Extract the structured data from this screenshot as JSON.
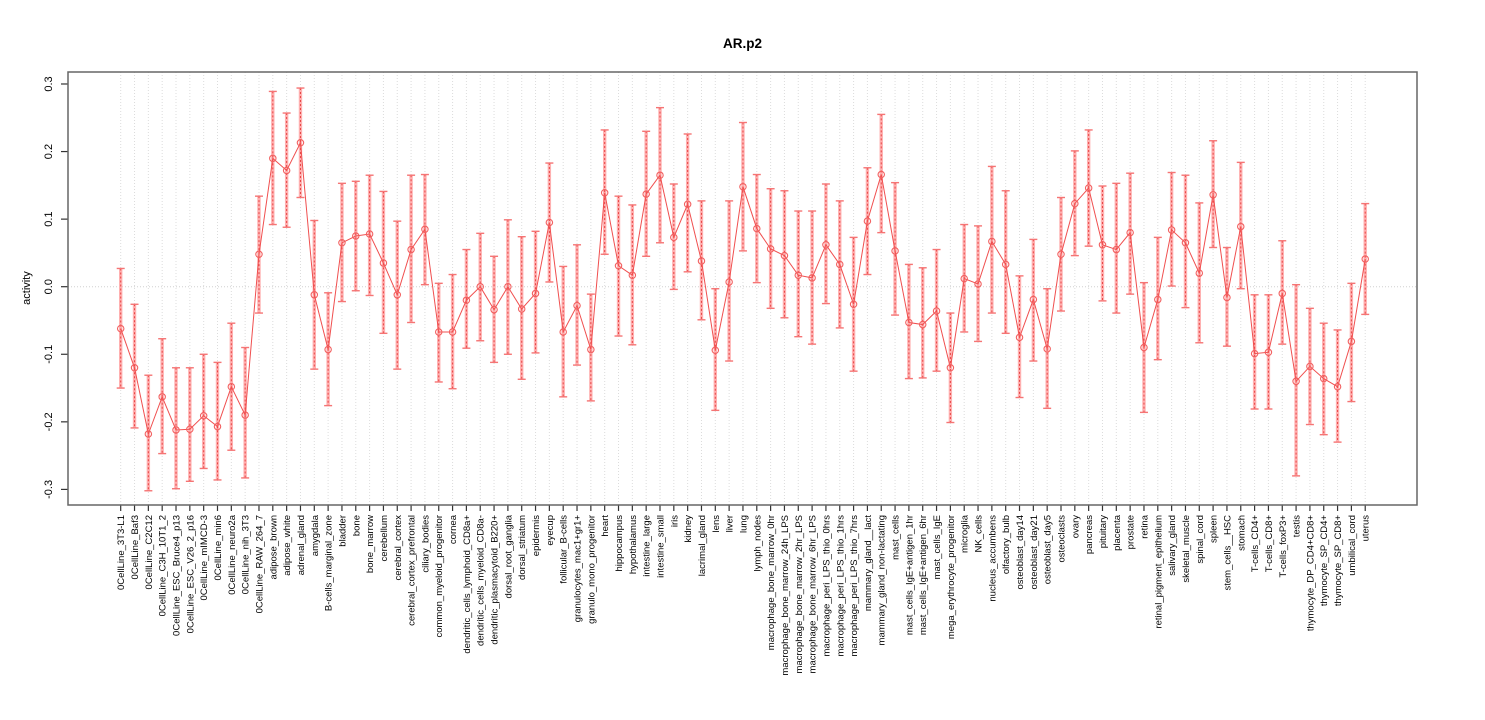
{
  "window": {
    "title": "AR.p2"
  },
  "chart_data": {
    "type": "line",
    "subtype": "points-with-error-bars",
    "title": "AR.p2",
    "xlabel": "",
    "ylabel": "activity",
    "ylim": [
      -0.3,
      0.3
    ],
    "yticks": [
      0.3,
      0.2,
      0.1,
      0.0,
      -0.1,
      -0.2,
      -0.3
    ],
    "ytick_labels": [
      "0.3",
      "0.2",
      "0.1",
      "0.0",
      "-0.1",
      "-0.2",
      "-0.3"
    ],
    "grid": "dotted vertical line at every category; dotted horizontal line at y=0",
    "legend": "none",
    "colors": {
      "point": "#f26060",
      "segment_line": "#f04f4f",
      "errorbar_thick": "#ffb0b0",
      "errorbar_cap": "#f57575",
      "errorbar_dash": "#e84545",
      "gridline": "#dcdcdc",
      "box": "#666666",
      "tick": "#333333",
      "text": "#000000"
    },
    "categories": [
      "0CellLine_3T3-L1",
      "0CellLine_Baf3",
      "0CellLine_C2C12",
      "0CellLine_C3H_10T1_2",
      "0CellLine_ESC_Bruce4_p13",
      "0CellLine_ESC_V26_2_p16",
      "0CellLine_mIMCD-3",
      "0CellLine_min6",
      "0CellLine_neuro2a",
      "0CellLine_nih_3T3",
      "0CellLine_RAW_264_7",
      "adipose_brown",
      "adipose_white",
      "adrenal_gland",
      "amygdala",
      "B-cells_marginal_zone",
      "bladder",
      "bone",
      "bone_marrow",
      "cerebellum",
      "cerebral_cortex",
      "cerebral_cortex_prefrontal",
      "ciliary_bodies",
      "common_myeloid_progenitor",
      "cornea",
      "dendritic_cells_lymphoid_CD8a+",
      "dendritic_cells_myeloid_CD8a-",
      "dendritic_plasmacytoid_B220+",
      "dorsal_root_ganglia",
      "dorsal_striatum",
      "epidermis",
      "eyecup",
      "follicular_B-cells",
      "granulocytes_mac1+gr1+",
      "granulo_mono_progenitor",
      "heart",
      "hippocampus",
      "hypothalamus",
      "intestine_large",
      "intestine_small",
      "iris",
      "kidney",
      "lacrimal_gland",
      "lens",
      "liver",
      "lung",
      "lymph_nodes",
      "macrophage_bone_marrow_0hr",
      "macrophage_bone_marrow_24h_LPS",
      "macrophage_bone_marrow_2hr_LPS",
      "macrophage_bone_marrow_6hr_LPS",
      "macrophage_peri_LPS_thio_0hrs",
      "macrophage_peri_LPS_thio_1hrs",
      "macrophage_peri_LPS_thio_7hrs",
      "mammary_gland__lact",
      "mammary_gland_non-lactating",
      "mast_cells",
      "mast_cells_IgE+antigen_1hr",
      "mast_cells_IgE+antigen_6hr",
      "mast_cells_IgE",
      "mega_erythrocyte_progenitor",
      "microglia",
      "NK_cells",
      "nucleus_accumbens",
      "olfactory_bulb",
      "osteoblast_day14",
      "osteoblast_day21",
      "osteoblast_day5",
      "osteoclasts",
      "ovary",
      "pancreas",
      "pituitary",
      "placenta",
      "prostate",
      "retina",
      "retinal_pigment_epithelium",
      "salivary_gland",
      "skeletal_muscle",
      "spinal_cord",
      "spleen",
      "stem_cells__HSC",
      "stomach",
      "T-cells_CD4+",
      "T-cells_CD8+",
      "T-cells_foxP3+",
      "testis",
      "thymocyte_DP_CD4+CD8+",
      "thymocyte_SP_CD4+",
      "thymocyte_SP_CD8+",
      "umbilical_cord",
      "uterus"
    ],
    "series": [
      {
        "name": "activity",
        "values": [
          -0.062,
          -0.12,
          -0.218,
          -0.163,
          -0.212,
          -0.211,
          -0.191,
          -0.207,
          -0.148,
          -0.19,
          0.048,
          0.19,
          0.172,
          0.213,
          -0.012,
          -0.093,
          0.065,
          0.075,
          0.078,
          0.035,
          -0.012,
          0.055,
          0.085,
          -0.067,
          -0.067,
          -0.02,
          0.0,
          -0.034,
          0.0,
          -0.033,
          -0.01,
          0.095,
          -0.067,
          -0.028,
          -0.093,
          0.139,
          0.031,
          0.017,
          0.137,
          0.165,
          0.073,
          0.122,
          0.038,
          -0.094,
          0.007,
          0.148,
          0.086,
          0.056,
          0.046,
          0.017,
          0.013,
          0.062,
          0.033,
          -0.026,
          0.097,
          0.166,
          0.053,
          -0.053,
          -0.056,
          -0.036,
          -0.12,
          0.012,
          0.004,
          0.067,
          0.033,
          -0.075,
          -0.019,
          -0.092,
          0.048,
          0.123,
          0.146,
          0.062,
          0.055,
          0.08,
          -0.09,
          -0.019,
          0.084,
          0.065,
          0.02,
          0.136,
          -0.016,
          0.089,
          -0.099,
          -0.097,
          -0.01,
          -0.14,
          -0.118,
          -0.136,
          -0.148,
          -0.081,
          0.041
        ],
        "lower": [
          -0.15,
          -0.209,
          -0.302,
          -0.247,
          -0.299,
          -0.288,
          -0.269,
          -0.286,
          -0.242,
          -0.283,
          -0.039,
          0.092,
          0.088,
          0.132,
          -0.122,
          -0.176,
          -0.022,
          -0.006,
          -0.013,
          -0.069,
          -0.122,
          -0.053,
          0.003,
          -0.141,
          -0.151,
          -0.091,
          -0.08,
          -0.112,
          -0.1,
          -0.137,
          -0.098,
          0.007,
          -0.163,
          -0.116,
          -0.169,
          0.048,
          -0.073,
          -0.086,
          0.045,
          0.065,
          -0.004,
          0.022,
          -0.049,
          -0.183,
          -0.11,
          0.053,
          0.006,
          -0.032,
          -0.046,
          -0.074,
          -0.085,
          -0.025,
          -0.061,
          -0.125,
          0.018,
          0.08,
          -0.042,
          -0.136,
          -0.135,
          -0.125,
          -0.201,
          -0.067,
          -0.081,
          -0.039,
          -0.069,
          -0.164,
          -0.11,
          -0.18,
          -0.036,
          0.046,
          0.06,
          -0.021,
          -0.039,
          -0.011,
          -0.186,
          -0.108,
          0.001,
          -0.031,
          -0.083,
          0.058,
          -0.088,
          -0.003,
          -0.181,
          -0.181,
          -0.085,
          -0.28,
          -0.204,
          -0.219,
          -0.23,
          -0.17,
          -0.041
        ],
        "upper": [
          0.027,
          -0.026,
          -0.131,
          -0.077,
          -0.12,
          -0.12,
          -0.1,
          -0.112,
          -0.054,
          -0.09,
          0.134,
          0.289,
          0.257,
          0.294,
          0.098,
          -0.009,
          0.153,
          0.156,
          0.165,
          0.141,
          0.097,
          0.165,
          0.166,
          0.005,
          0.018,
          0.055,
          0.079,
          0.045,
          0.099,
          0.074,
          0.082,
          0.183,
          0.03,
          0.062,
          -0.011,
          0.232,
          0.134,
          0.121,
          0.23,
          0.265,
          0.152,
          0.226,
          0.127,
          -0.003,
          0.127,
          0.243,
          0.166,
          0.145,
          0.142,
          0.112,
          0.112,
          0.152,
          0.127,
          0.073,
          0.176,
          0.255,
          0.154,
          0.033,
          0.028,
          0.055,
          -0.039,
          0.092,
          0.09,
          0.178,
          0.142,
          0.016,
          0.07,
          -0.003,
          0.132,
          0.201,
          0.232,
          0.149,
          0.153,
          0.168,
          0.006,
          0.073,
          0.169,
          0.165,
          0.124,
          0.216,
          0.058,
          0.184,
          -0.012,
          -0.012,
          0.068,
          0.003,
          -0.032,
          -0.054,
          -0.064,
          0.005,
          0.123
        ]
      }
    ]
  }
}
